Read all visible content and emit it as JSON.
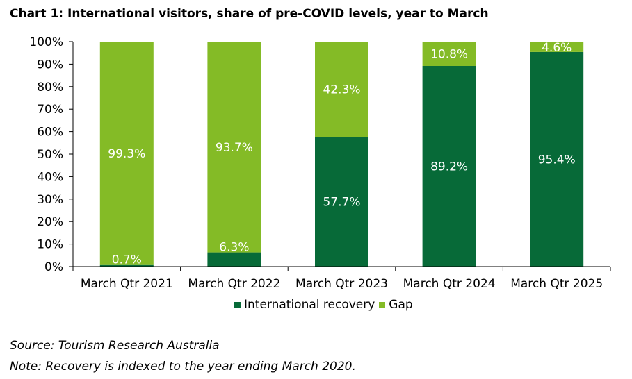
{
  "title": "Chart 1: International visitors, share of pre-COVID levels, year to March",
  "colors": {
    "recovery": "#076a38",
    "gap": "#84bb26",
    "label": "#ffffff",
    "axis": "#000000"
  },
  "legend": [
    "International recovery",
    "Gap"
  ],
  "notes": {
    "source": "Source: Tourism Research Australia",
    "note": "Note: Recovery is indexed to the year ending March 2020."
  },
  "chart_data": {
    "type": "bar",
    "stacked": true,
    "title": "Chart 1: International visitors, share of pre-COVID levels, year to March",
    "categories": [
      "March Qtr 2021",
      "March Qtr 2022",
      "March Qtr 2023",
      "March Qtr 2024",
      "March Qtr 2025"
    ],
    "series": [
      {
        "name": "International recovery",
        "values": [
          0.7,
          6.3,
          57.7,
          89.2,
          95.4
        ],
        "labels": [
          "0.7%",
          "6.3%",
          "57.7%",
          "89.2%",
          "95.4%"
        ]
      },
      {
        "name": "Gap",
        "values": [
          99.3,
          93.7,
          42.3,
          10.8,
          4.6
        ],
        "labels": [
          "99.3%",
          "93.7%",
          "42.3%",
          "10.8%",
          "4.6%"
        ]
      }
    ],
    "yticks": [
      "0%",
      "10%",
      "20%",
      "30%",
      "40%",
      "50%",
      "60%",
      "70%",
      "80%",
      "90%",
      "100%"
    ],
    "ylim": [
      0,
      100
    ],
    "xlabel": "",
    "ylabel": "",
    "legend_position": "bottom",
    "grid": false
  }
}
